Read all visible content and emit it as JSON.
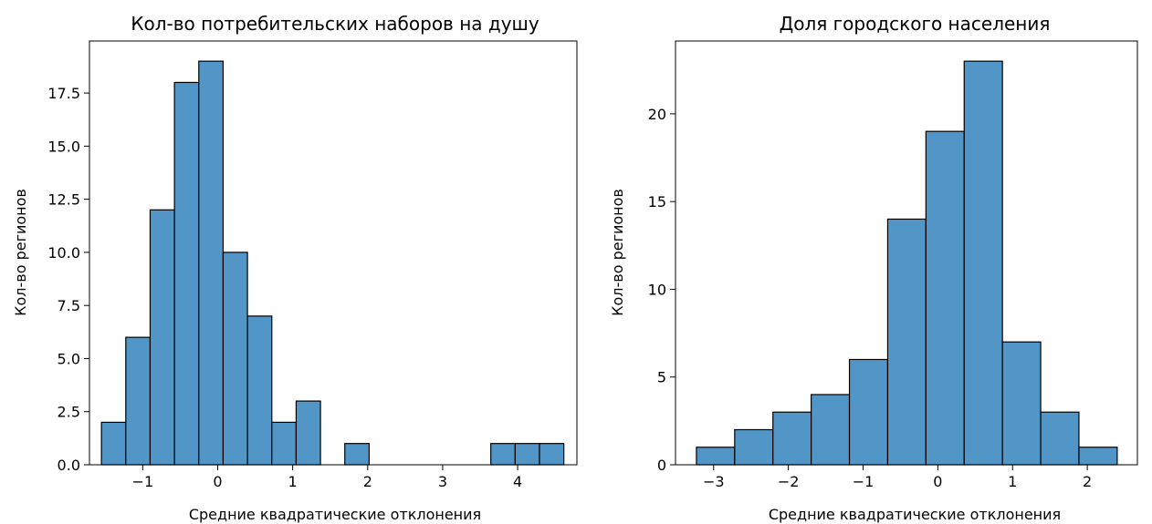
{
  "chart_data": [
    {
      "type": "bar",
      "title": "Кол-во потребительских наборов на душу",
      "xlabel": "Средние квадратические отклонения",
      "ylabel": "Кол-во регионов",
      "bar_color": "#5196c6",
      "edge_color": "#000000",
      "xlim": [
        -1.71,
        4.79
      ],
      "ylim": [
        0,
        19.95
      ],
      "xticks": [
        -1,
        0,
        1,
        2,
        3,
        4
      ],
      "xtick_labels": [
        "−1",
        "0",
        "1",
        "2",
        "3",
        "4"
      ],
      "yticks": [
        0,
        2.5,
        5,
        7.5,
        10,
        12.5,
        15,
        17.5
      ],
      "ytick_labels": [
        "0.0",
        "2.5",
        "5.0",
        "7.5",
        "10.0",
        "12.5",
        "15.0",
        "17.5"
      ],
      "bin_start": -1.55,
      "bin_width": 0.3245,
      "values": [
        2,
        6,
        12,
        18,
        19,
        10,
        7,
        2,
        3,
        0,
        1,
        0,
        0,
        0,
        0,
        0,
        1,
        1,
        1
      ]
    },
    {
      "type": "bar",
      "title": "Доля городского населения",
      "xlabel": "Средние квадратические отклонения",
      "ylabel": "Кол-во регионов",
      "bar_color": "#5196c6",
      "edge_color": "#000000",
      "xlim": [
        -3.51,
        2.67
      ],
      "ylim": [
        0,
        24.15
      ],
      "xticks": [
        -3,
        -2,
        -1,
        0,
        1,
        2
      ],
      "xtick_labels": [
        "−3",
        "−2",
        "−1",
        "0",
        "1",
        "2"
      ],
      "yticks": [
        0,
        5,
        10,
        15,
        20
      ],
      "ytick_labels": [
        "0",
        "5",
        "10",
        "15",
        "20"
      ],
      "bin_start": -3.23,
      "bin_width": 0.5118,
      "values": [
        1,
        2,
        3,
        4,
        6,
        14,
        19,
        23,
        7,
        3,
        1
      ]
    }
  ]
}
